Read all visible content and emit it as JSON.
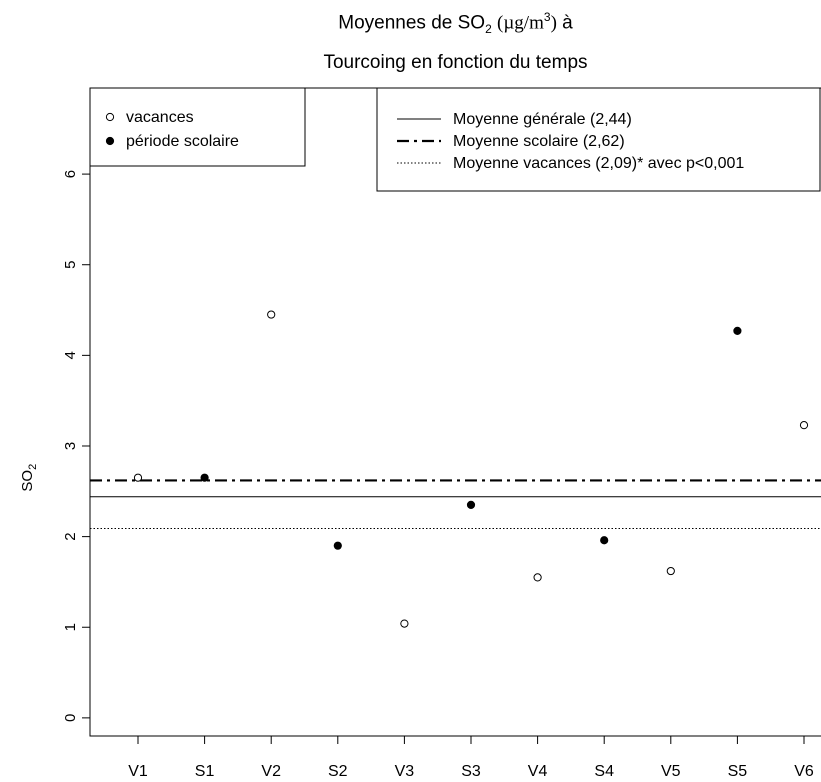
{
  "title": {
    "line1_prefix": "Moyennes de SO",
    "line1_sub": "2",
    "line1_unit_open": "(µg/m",
    "line1_unit_sup": "3",
    "line1_unit_close": ")",
    "line1_suffix": "à",
    "line2": "Tourcoing en fonction du temps"
  },
  "chart_data": {
    "type": "scatter",
    "title": "Moyennes de SO2 (µg/m3) à Tourcoing en fonction du temps",
    "xlabel": "",
    "ylabel": "SO2",
    "ylabel_main": "SO",
    "ylabel_sub": "2",
    "categories": [
      "V1",
      "S1",
      "V2",
      "S2",
      "V3",
      "S3",
      "V4",
      "S4",
      "V5",
      "S5",
      "V6"
    ],
    "ylim": [
      -0.2,
      6.95
    ],
    "yticks": [
      "0",
      "1",
      "2",
      "3",
      "4",
      "5",
      "6"
    ],
    "grid": false,
    "series": [
      {
        "name": "vacances",
        "marker": "open-circle",
        "points": [
          {
            "x": "V1",
            "y": 2.65
          },
          {
            "x": "V2",
            "y": 4.45
          },
          {
            "x": "V3",
            "y": 1.04
          },
          {
            "x": "V4",
            "y": 1.55
          },
          {
            "x": "V5",
            "y": 1.62
          },
          {
            "x": "V6",
            "y": 3.23
          }
        ]
      },
      {
        "name": "période scolaire",
        "marker": "filled-circle",
        "points": [
          {
            "x": "S1",
            "y": 2.65
          },
          {
            "x": "S2",
            "y": 1.9
          },
          {
            "x": "S3",
            "y": 2.35
          },
          {
            "x": "S4",
            "y": 1.96
          },
          {
            "x": "S5",
            "y": 4.27
          }
        ]
      }
    ],
    "reference_lines": [
      {
        "label": "Moyenne générale (2,44)",
        "y": 2.44,
        "style": "solid"
      },
      {
        "label": "Moyenne scolaire (2,62)",
        "y": 2.62,
        "style": "dashdot"
      },
      {
        "label": "Moyenne vacances (2,09)* avec p<0,001",
        "y": 2.09,
        "style": "dotted"
      }
    ],
    "legends": [
      {
        "position": "top-left",
        "entries": [
          "vacances",
          "période scolaire"
        ]
      },
      {
        "position": "top-right",
        "entries": [
          "Moyenne générale (2,44)",
          "Moyenne scolaire (2,62)",
          "Moyenne vacances (2,09)* avec p<0,001"
        ]
      }
    ],
    "colors": {
      "points": "#000000",
      "lines": "#000000",
      "background": "#ffffff"
    }
  }
}
